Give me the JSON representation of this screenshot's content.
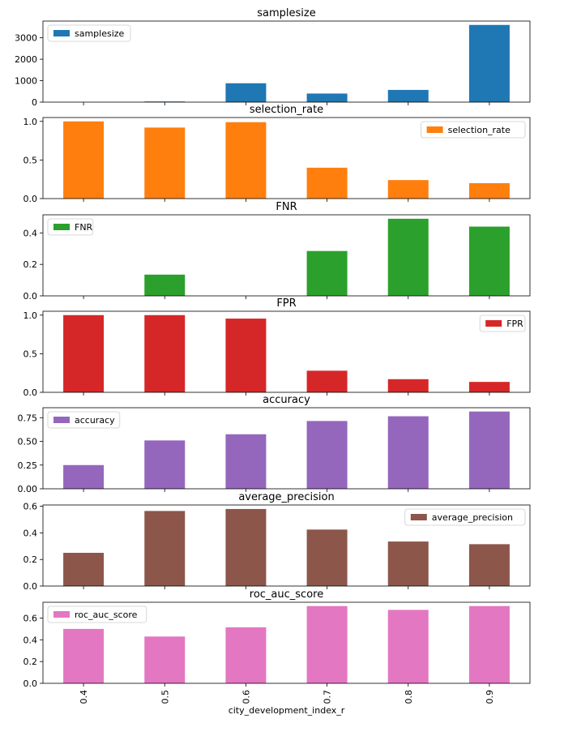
{
  "chart_data": {
    "type": "bar",
    "layout": "stacked-subplots",
    "x": [
      "0.4",
      "0.5",
      "0.6",
      "0.7",
      "0.8",
      "0.9"
    ],
    "xlabel": "city_development_index_r",
    "panels": [
      {
        "title": "samplesize",
        "series": [
          {
            "name": "samplesize",
            "values": [
              0,
              30,
              880,
              400,
              570,
              3600
            ]
          }
        ],
        "ylim": [
          0,
          3780
        ],
        "yticks": [
          0,
          1000,
          2000,
          3000
        ],
        "ytick_labels": [
          "0",
          "1000",
          "2000",
          "3000"
        ],
        "color": "#1f77b4",
        "legend_position": "top-left"
      },
      {
        "title": "selection_rate",
        "series": [
          {
            "name": "selection_rate",
            "values": [
              1.0,
              0.92,
              0.99,
              0.4,
              0.24,
              0.2
            ]
          }
        ],
        "ylim": [
          0,
          1.05
        ],
        "yticks": [
          0,
          0.5,
          1.0
        ],
        "ytick_labels": [
          "0.0",
          "0.5",
          "1.0"
        ],
        "color": "#ff7f0e",
        "legend_position": "top-right"
      },
      {
        "title": "FNR",
        "series": [
          {
            "name": "FNR",
            "values": [
              0,
              0.135,
              0,
              0.285,
              0.49,
              0.44
            ]
          }
        ],
        "ylim": [
          0,
          0.515
        ],
        "yticks": [
          0,
          0.2,
          0.4
        ],
        "ytick_labels": [
          "0.0",
          "0.2",
          "0.4"
        ],
        "color": "#2ca02c",
        "legend_position": "top-left"
      },
      {
        "title": "FPR",
        "series": [
          {
            "name": "FPR",
            "values": [
              1.0,
              1.0,
              0.955,
              0.28,
              0.17,
              0.135
            ]
          }
        ],
        "ylim": [
          0,
          1.05
        ],
        "yticks": [
          0,
          0.5,
          1.0
        ],
        "ytick_labels": [
          "0.0",
          "0.5",
          "1.0"
        ],
        "color": "#d62728",
        "legend_position": "top-right"
      },
      {
        "title": "accuracy",
        "series": [
          {
            "name": "accuracy",
            "values": [
              0.25,
              0.51,
              0.575,
              0.715,
              0.765,
              0.815
            ]
          }
        ],
        "ylim": [
          0,
          0.855
        ],
        "yticks": [
          0,
          0.25,
          0.5,
          0.75
        ],
        "ytick_labels": [
          "0.00",
          "0.25",
          "0.50",
          "0.75"
        ],
        "color": "#9467bd",
        "legend_position": "top-left"
      },
      {
        "title": "average_precision",
        "series": [
          {
            "name": "average_precision",
            "values": [
              0.25,
              0.565,
              0.58,
              0.425,
              0.335,
              0.315
            ]
          }
        ],
        "ylim": [
          0,
          0.61
        ],
        "yticks": [
          0,
          0.2,
          0.4,
          0.6
        ],
        "ytick_labels": [
          "0.0",
          "0.2",
          "0.4",
          "0.6"
        ],
        "color": "#8c564b",
        "legend_position": "top-right"
      },
      {
        "title": "roc_auc_score",
        "series": [
          {
            "name": "roc_auc_score",
            "values": [
              0.5,
              0.43,
              0.515,
              0.71,
              0.675,
              0.71
            ]
          }
        ],
        "ylim": [
          0,
          0.745
        ],
        "yticks": [
          0,
          0.2,
          0.4,
          0.6
        ],
        "ytick_labels": [
          "0.0",
          "0.2",
          "0.4",
          "0.6"
        ],
        "color": "#e377c2",
        "legend_position": "top-left"
      }
    ]
  }
}
